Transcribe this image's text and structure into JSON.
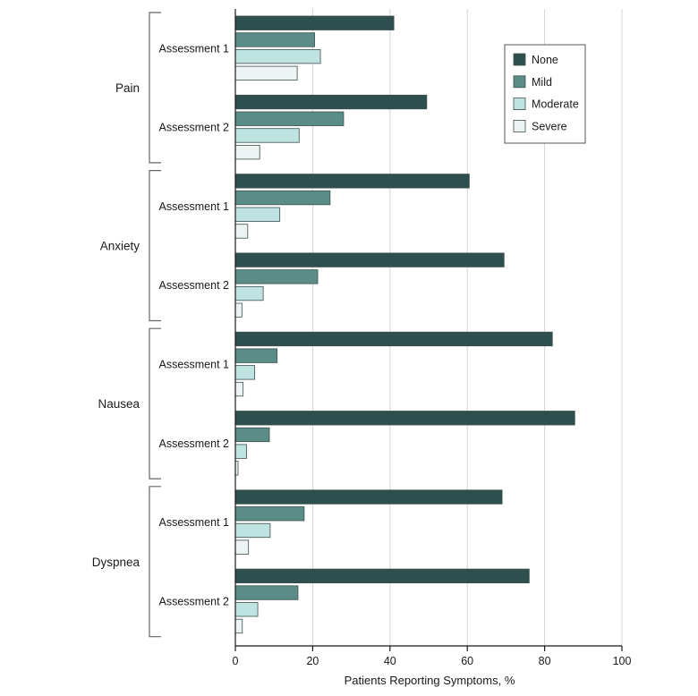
{
  "chart_data": {
    "type": "bar",
    "orientation": "horizontal",
    "xlabel": "Patients Reporting Symptoms, %",
    "xlim": [
      0,
      100
    ],
    "xticks": [
      0,
      20,
      40,
      60,
      80,
      100
    ],
    "grid": true,
    "legend_position": "top-right",
    "groups": [
      {
        "name": "Pain",
        "assessments": [
          {
            "label": "Assessment 1",
            "values": {
              "None": 41,
              "Mild": 20.5,
              "Moderate": 22,
              "Severe": 16
            }
          },
          {
            "label": "Assessment 2",
            "values": {
              "None": 49.5,
              "Mild": 28,
              "Moderate": 16.5,
              "Severe": 6.3
            }
          }
        ]
      },
      {
        "name": "Anxiety",
        "assessments": [
          {
            "label": "Assessment 1",
            "values": {
              "None": 60.5,
              "Mild": 24.5,
              "Moderate": 11.5,
              "Severe": 3.2
            }
          },
          {
            "label": "Assessment 2",
            "values": {
              "None": 69.5,
              "Mild": 21.3,
              "Moderate": 7.2,
              "Severe": 1.7
            }
          }
        ]
      },
      {
        "name": "Nausea",
        "assessments": [
          {
            "label": "Assessment 1",
            "values": {
              "None": 82,
              "Mild": 10.8,
              "Moderate": 5,
              "Severe": 2
            }
          },
          {
            "label": "Assessment 2",
            "values": {
              "None": 87.8,
              "Mild": 8.8,
              "Moderate": 2.9,
              "Severe": 0.7
            }
          }
        ]
      },
      {
        "name": "Dyspnea",
        "assessments": [
          {
            "label": "Assessment 1",
            "values": {
              "None": 69,
              "Mild": 17.8,
              "Moderate": 9,
              "Severe": 3.4
            }
          },
          {
            "label": "Assessment 2",
            "values": {
              "None": 76,
              "Mild": 16.2,
              "Moderate": 5.8,
              "Severe": 1.8
            }
          }
        ]
      }
    ],
    "series": [
      {
        "name": "None",
        "color": "#2e4f4d"
      },
      {
        "name": "Mild",
        "color": "#5a8d88"
      },
      {
        "name": "Moderate",
        "color": "#bfe3e0"
      },
      {
        "name": "Severe",
        "color": "#edf3f3"
      }
    ]
  }
}
